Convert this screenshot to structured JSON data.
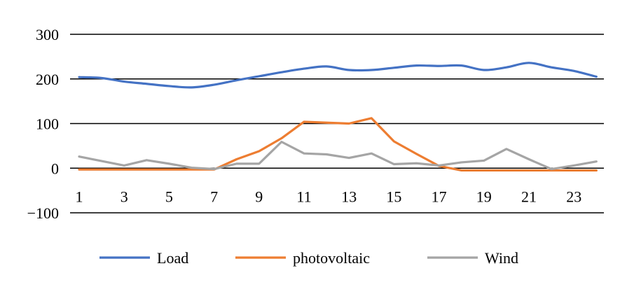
{
  "chart_data": {
    "type": "line",
    "x": [
      1,
      2,
      3,
      4,
      5,
      6,
      7,
      8,
      9,
      10,
      11,
      12,
      13,
      14,
      15,
      16,
      17,
      18,
      19,
      20,
      21,
      22,
      23,
      24
    ],
    "x_tick_labels": [
      "1",
      "3",
      "5",
      "7",
      "9",
      "11",
      "13",
      "15",
      "17",
      "19",
      "21",
      "23"
    ],
    "y_tick_labels": [
      "300",
      "200",
      "100",
      "0",
      "−100"
    ],
    "ylim": [
      -100,
      300
    ],
    "y_ticks": [
      300,
      200,
      100,
      0,
      -100
    ],
    "grid": true,
    "legend_position": "bottom",
    "series": [
      {
        "name": "Load",
        "color": "#4472C4",
        "smooth": true,
        "values": [
          204,
          202,
          194,
          189,
          184,
          181,
          187,
          197,
          206,
          215,
          223,
          228,
          220,
          220,
          225,
          230,
          229,
          230,
          220,
          226,
          236,
          226,
          218,
          205
        ]
      },
      {
        "name": "photovoltaic",
        "color": "#ED7D31",
        "smooth": false,
        "values": [
          -3,
          -3,
          -3,
          -3,
          -3,
          -3,
          -3,
          20,
          38,
          67,
          104,
          102,
          100,
          112,
          60,
          32,
          5,
          -5,
          -5,
          -5,
          -5,
          -5,
          -5,
          -5
        ]
      },
      {
        "name": "Wind",
        "color": "#A5A5A5",
        "smooth": false,
        "values": [
          26,
          16,
          6,
          18,
          10,
          1,
          -2,
          10,
          10,
          59,
          33,
          31,
          23,
          33,
          9,
          11,
          6,
          13,
          17,
          43,
          20,
          -2,
          6,
          15
        ]
      }
    ]
  }
}
